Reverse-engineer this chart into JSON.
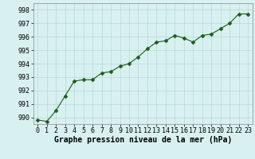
{
  "x": [
    0,
    1,
    2,
    3,
    4,
    5,
    6,
    7,
    8,
    9,
    10,
    11,
    12,
    13,
    14,
    15,
    16,
    17,
    18,
    19,
    20,
    21,
    22,
    23
  ],
  "y": [
    989.8,
    989.7,
    990.5,
    991.6,
    992.7,
    992.8,
    992.8,
    993.3,
    993.4,
    993.8,
    994.0,
    994.5,
    995.1,
    995.6,
    995.7,
    996.1,
    995.9,
    995.6,
    996.1,
    996.2,
    996.6,
    997.0,
    997.7,
    997.7
  ],
  "line_color": "#1a5c1a",
  "marker": "D",
  "marker_size": 2.5,
  "bg_color": "#d8f0f0",
  "grid_color": "#b8d8d8",
  "xlabel": "Graphe pression niveau de la mer (hPa)",
  "ylim": [
    989.5,
    998.5
  ],
  "yticks": [
    990,
    991,
    992,
    993,
    994,
    995,
    996,
    997,
    998
  ],
  "xticks": [
    0,
    1,
    2,
    3,
    4,
    5,
    6,
    7,
    8,
    9,
    10,
    11,
    12,
    13,
    14,
    15,
    16,
    17,
    18,
    19,
    20,
    21,
    22,
    23
  ],
  "tick_fontsize": 6.0,
  "xlabel_fontsize": 7.0,
  "linewidth": 0.8
}
